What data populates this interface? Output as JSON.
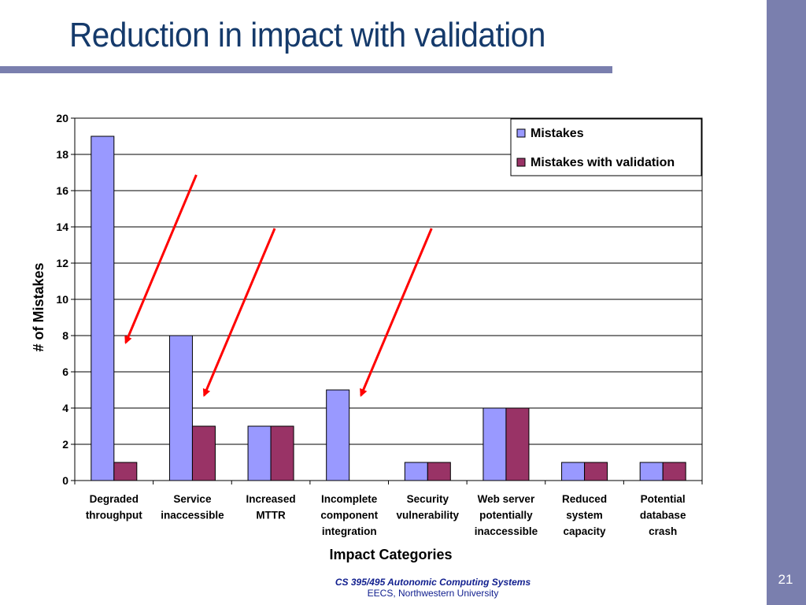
{
  "slide": {
    "title": "Reduction in impact with validation",
    "page_number": "21",
    "footer_course": "CS 395/495 Autonomic Computing Systems",
    "footer_dept": "EECS,  Northwestern University",
    "accent_color": "#7a7fae",
    "title_color": "#153a6b"
  },
  "chart_data": {
    "type": "bar",
    "title": "",
    "xlabel": "Impact Categories",
    "ylabel": "# of Mistakes",
    "ylim": [
      0,
      20
    ],
    "yticks": [
      0,
      2,
      4,
      6,
      8,
      10,
      12,
      14,
      16,
      18,
      20
    ],
    "grid": true,
    "legend_position": "top-right",
    "categories": [
      [
        "Degraded",
        "throughput"
      ],
      [
        "Service",
        "inaccessible"
      ],
      [
        "Increased",
        "MTTR"
      ],
      [
        "Incomplete",
        "component",
        "integration"
      ],
      [
        "Security",
        "vulnerability"
      ],
      [
        "Web server",
        "potentially",
        "inaccessible"
      ],
      [
        "Reduced",
        "system",
        "capacity"
      ],
      [
        "Potential",
        "database",
        "crash"
      ]
    ],
    "series": [
      {
        "name": "Mistakes",
        "color": "#9999ff",
        "values": [
          19,
          8,
          3,
          5,
          1,
          4,
          1,
          1
        ]
      },
      {
        "name": "Mistakes with validation",
        "color": "#993366",
        "values": [
          1,
          3,
          3,
          0,
          1,
          4,
          1,
          1
        ]
      }
    ],
    "annotations": [
      {
        "type": "arrow",
        "color": "#ff0000",
        "from_category": 1,
        "to_category": 0
      },
      {
        "type": "arrow",
        "color": "#ff0000",
        "from_category": 2,
        "to_category": 1
      },
      {
        "type": "arrow",
        "color": "#ff0000",
        "from_category": 4,
        "to_category": 3
      }
    ]
  }
}
